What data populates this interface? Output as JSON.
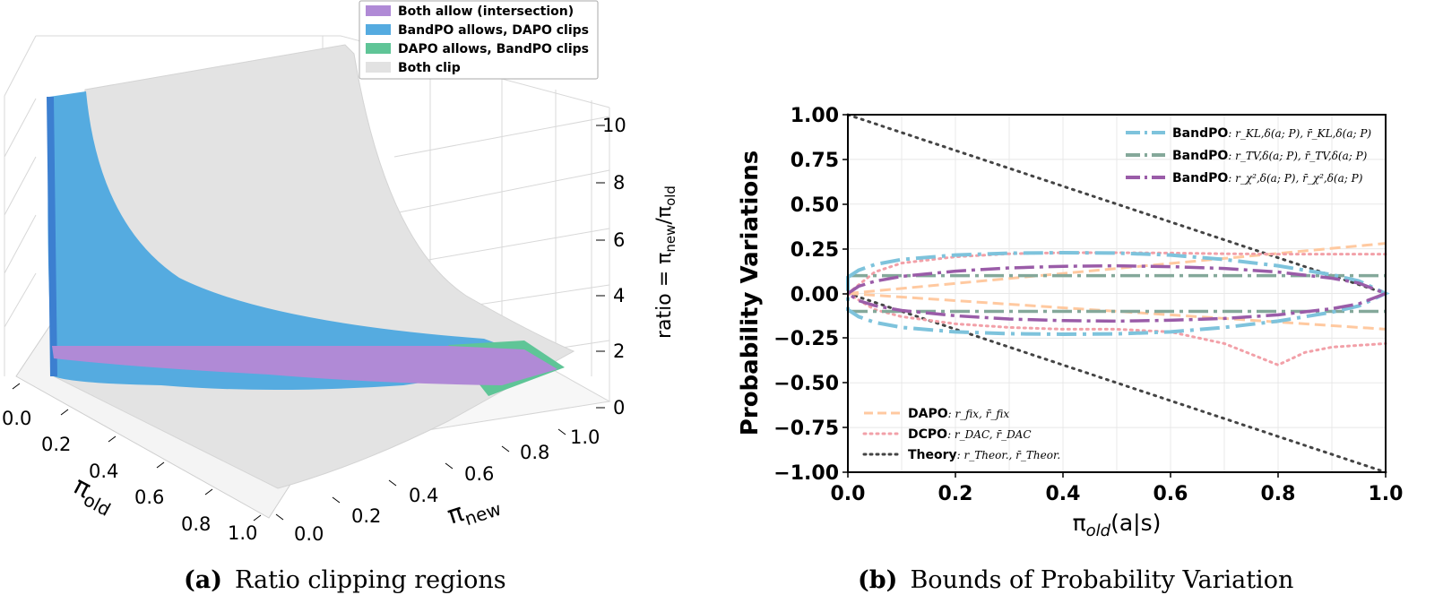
{
  "chart_data": [
    {
      "type": "surface3d",
      "caption_label": "(a)",
      "caption": "Ratio clipping regions",
      "xlabel": "π",
      "xlabel_sub": "old",
      "ylabel": "π",
      "ylabel_sub": "new",
      "zlabel": "ratio = π",
      "zlabel_sub1": "new",
      "zlabel_mid": "/π",
      "zlabel_sub2": "old",
      "x_ticks": [
        "0.0",
        "0.2",
        "0.4",
        "0.6",
        "0.8",
        "1.0"
      ],
      "y_ticks": [
        "0.0",
        "0.2",
        "0.4",
        "0.6",
        "0.8",
        "1.0"
      ],
      "z_ticks": [
        "0",
        "2",
        "4",
        "6",
        "8",
        "10"
      ],
      "zlim": [
        0,
        10
      ],
      "legend": [
        {
          "label": "Both allow (intersection)",
          "color": "#b08ad6"
        },
        {
          "label": "BandPO allows, DAPO clips",
          "color": "#55abe0"
        },
        {
          "label": "DAPO allows, BandPO clips",
          "color": "#5fc597"
        },
        {
          "label": "Both clip",
          "color": "#e2e2e2"
        }
      ]
    },
    {
      "type": "line",
      "caption_label": "(b)",
      "caption": "Bounds of Probability Variation",
      "xlabel": "π",
      "xlabel_sub": "old",
      "xlabel_rest": "(a|s)",
      "ylabel": "Probability Variations",
      "xlim": [
        0,
        1
      ],
      "ylim": [
        -1,
        1
      ],
      "x_ticks": [
        "0.0",
        "0.2",
        "0.4",
        "0.6",
        "0.8",
        "1.0"
      ],
      "y_ticks": [
        "1.00",
        "0.75",
        "0.50",
        "0.25",
        "0.00",
        "−0.25",
        "−0.50",
        "−0.75",
        "−1.00"
      ],
      "legend_top": [
        {
          "name": "BandPO",
          "math": ": r_KL,δ(a; P), r̄_KL,δ(a; P)",
          "color": "#7ec3dc"
        },
        {
          "name": "BandPO",
          "math": ": r_TV,δ(a; P), r̄_TV,δ(a; P)",
          "color": "#84a89a"
        },
        {
          "name": "BandPO",
          "math": ": r_χ²,δ(a; P), r̄_χ²,δ(a; P)",
          "color": "#9a5ca8"
        }
      ],
      "legend_bottom": [
        {
          "name": "DAPO",
          "math": ": r_fix, r̄_fix",
          "color": "#ffc9a0"
        },
        {
          "name": "DCPO",
          "math": ": r_DAC, r̄_DAC",
          "color": "#f2a0a8"
        },
        {
          "name": "Theory",
          "math": ": r_Theor., r̄_Theor.",
          "color": "#333333"
        }
      ],
      "series": [
        {
          "name": "Theory upper",
          "x": [
            0,
            1
          ],
          "y": [
            1,
            0
          ]
        },
        {
          "name": "Theory lower",
          "x": [
            0,
            1
          ],
          "y": [
            0,
            -1
          ]
        },
        {
          "name": "DAPO upper",
          "x": [
            0,
            0.2,
            0.4,
            0.6,
            0.8,
            1.0
          ],
          "y": [
            0,
            0.056,
            0.112,
            0.168,
            0.224,
            0.28
          ]
        },
        {
          "name": "DAPO lower",
          "x": [
            0,
            0.2,
            0.4,
            0.6,
            0.8,
            1.0
          ],
          "y": [
            0,
            -0.04,
            -0.08,
            -0.12,
            -0.16,
            -0.2
          ]
        },
        {
          "name": "DCPO upper",
          "x": [
            0,
            0.05,
            0.1,
            0.2,
            0.3,
            0.4,
            0.5,
            0.6,
            0.7,
            0.8,
            0.9,
            1.0
          ],
          "y": [
            0,
            0.12,
            0.17,
            0.205,
            0.222,
            0.228,
            0.228,
            0.226,
            0.222,
            0.22,
            0.22,
            0.22
          ]
        },
        {
          "name": "DCPO lower",
          "x": [
            0,
            0.05,
            0.1,
            0.2,
            0.3,
            0.4,
            0.5,
            0.6,
            0.7,
            0.75,
            0.8,
            0.85,
            0.9,
            0.95,
            1.0
          ],
          "y": [
            0,
            -0.09,
            -0.13,
            -0.17,
            -0.19,
            -0.2,
            -0.2,
            -0.215,
            -0.28,
            -0.34,
            -0.4,
            -0.33,
            -0.3,
            -0.29,
            -0.28
          ]
        },
        {
          "name": "BandPO KL",
          "x": [
            0,
            0.02,
            0.05,
            0.1,
            0.2,
            0.3,
            0.4,
            0.5,
            0.6,
            0.7,
            0.8,
            0.9,
            0.95,
            1.0
          ],
          "y_upper": [
            0.09,
            0.13,
            0.162,
            0.19,
            0.215,
            0.225,
            0.228,
            0.226,
            0.215,
            0.19,
            0.155,
            0.105,
            0.07,
            0.0
          ],
          "y_lower": [
            -0.09,
            -0.13,
            -0.162,
            -0.19,
            -0.215,
            -0.225,
            -0.228,
            -0.226,
            -0.215,
            -0.19,
            -0.155,
            -0.105,
            -0.07,
            0.0
          ]
        },
        {
          "name": "BandPO TV",
          "x": [
            0,
            1
          ],
          "y_upper": [
            0.1,
            0.1
          ],
          "y_lower": [
            -0.1,
            -0.1
          ]
        },
        {
          "name": "BandPO chi2",
          "x": [
            0,
            0.02,
            0.05,
            0.1,
            0.2,
            0.3,
            0.4,
            0.5,
            0.6,
            0.7,
            0.8,
            0.9,
            0.95,
            1.0
          ],
          "y_upper": [
            0.0,
            0.04,
            0.068,
            0.095,
            0.125,
            0.143,
            0.152,
            0.155,
            0.15,
            0.14,
            0.12,
            0.085,
            0.058,
            0.0
          ],
          "y_lower": [
            0.0,
            -0.04,
            -0.068,
            -0.095,
            -0.125,
            -0.143,
            -0.152,
            -0.155,
            -0.15,
            -0.14,
            -0.12,
            -0.085,
            -0.058,
            0.0
          ]
        }
      ]
    }
  ]
}
